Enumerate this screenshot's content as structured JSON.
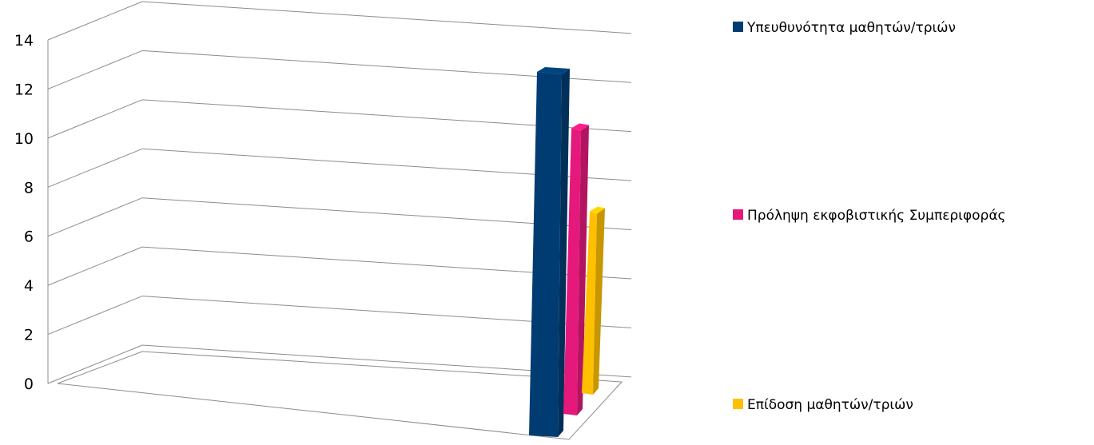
{
  "chart_data": {
    "type": "bar",
    "title": "",
    "xlabel": "",
    "ylabel": "",
    "ylim": [
      0,
      14
    ],
    "y_ticks": [
      "0",
      "2",
      "4",
      "6",
      "8",
      "10",
      "12",
      "14"
    ],
    "grid": true,
    "three_d": true,
    "legend_position": "right",
    "series": [
      {
        "name": "Υπευθυνότητα μαθητών/τριών",
        "color": "#003C72",
        "values": [
          14
        ]
      },
      {
        "name": "Πρόληψη εκφοβιστικής Συμπεριφοράς",
        "color": "#E5197C",
        "values": [
          11
        ]
      },
      {
        "name": "Επίδοση μαθητών/τριών",
        "color": "#FFC000",
        "values": [
          7
        ]
      }
    ]
  }
}
